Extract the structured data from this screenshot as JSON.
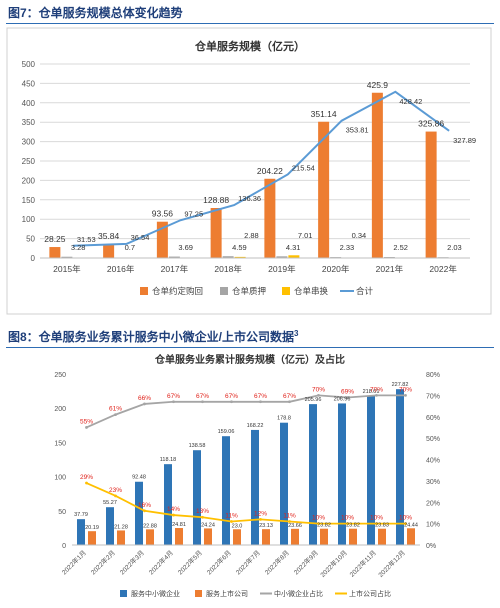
{
  "figure1": {
    "caption": "图7：仓单服务规模总体变化趋势",
    "chart_data": {
      "type": "bar",
      "title": "仓单服务规模（亿元）",
      "categories": [
        "2015年",
        "2016年",
        "2017年",
        "2018年",
        "2019年",
        "2020年",
        "2021年",
        "2022年"
      ],
      "ylim": [
        0,
        500
      ],
      "yticks": [
        "0",
        "50",
        "100",
        "150",
        "200",
        "250",
        "300",
        "350",
        "400",
        "450",
        "500"
      ],
      "grid": true,
      "legend": "bottom",
      "series": [
        {
          "name": "仓单约定购回",
          "kind": "bar",
          "color": "#ed7d31",
          "values": [
            28.25,
            35.84,
            93.56,
            128.88,
            204.22,
            351.14,
            425.9,
            325.86
          ],
          "labels": [
            "28.25",
            "35.84",
            "93.56",
            "128.88",
            "204.22",
            "351.14",
            "425.9",
            "325.86"
          ]
        },
        {
          "name": "仓单质押",
          "kind": "bar",
          "color": "#a5a5a5",
          "values": [
            3.28,
            0.7,
            3.69,
            4.59,
            4.31,
            2.33,
            2.52,
            2.03
          ],
          "labels": [
            "3.28",
            "0.7",
            "3.69",
            "4.59",
            "4.31",
            "2.33",
            "2.52",
            "2.03"
          ]
        },
        {
          "name": "仓单串换",
          "kind": "bar",
          "color": "#ffc000",
          "values": [
            0,
            0,
            0,
            2.88,
            7.01,
            0.34,
            0,
            0
          ],
          "labels": [
            "",
            "",
            "",
            "2.88",
            "7.01",
            "0.34",
            "",
            ""
          ]
        },
        {
          "name": "合计",
          "kind": "line",
          "color": "#5b9bd5",
          "values": [
            31.53,
            36.54,
            97.25,
            136.36,
            215.54,
            353.81,
            428.42,
            327.89
          ],
          "labels": [
            "31.53",
            "36.54",
            "97.25",
            "136.36",
            "215.54",
            "353.81",
            "428.42",
            "327.89"
          ]
        }
      ]
    }
  },
  "figure2": {
    "caption": "图8：仓单服务业务累计服务中小微企业/上市公司数据",
    "caption_sup": "3",
    "chart_data": {
      "type": "bar",
      "title": "仓单服务业务累计服务规模（亿元）及占比",
      "categories": [
        "2022年1月",
        "2022年2月",
        "2022年3月",
        "2022年4月",
        "2022年5月",
        "2022年6月",
        "2022年7月",
        "2022年8月",
        "2022年9月",
        "2022年10月",
        "2022年11月",
        "2022年12月"
      ],
      "ylim_left": [
        0,
        250
      ],
      "yticks_left": [
        "0",
        "50",
        "100",
        "150",
        "200",
        "250"
      ],
      "ylim_right": [
        0,
        80
      ],
      "yticks_right": [
        "0%",
        "10%",
        "20%",
        "30%",
        "40%",
        "50%",
        "60%",
        "70%",
        "80%"
      ],
      "legend": "bottom",
      "series": [
        {
          "name": "服务中小微企业",
          "kind": "bar",
          "axis": "left",
          "color": "#2e75b6",
          "values": [
            37.79,
            55.27,
            92.48,
            118.18,
            138.58,
            159.06,
            168.22,
            178.8,
            205.96,
            206.96,
            218.01,
            227.82
          ],
          "labels": [
            "37.79",
            "55.27",
            "92.48",
            "118.18",
            "138.58",
            "159.06",
            "168.22",
            "178.8",
            "205.96",
            "206.96",
            "218.01",
            "227.82"
          ]
        },
        {
          "name": "服务上市公司",
          "kind": "bar",
          "axis": "left",
          "color": "#ed7d31",
          "values": [
            20.19,
            21.28,
            22.88,
            24.81,
            24.24,
            23.0,
            23.13,
            23.66,
            23.82,
            23.82,
            23.83,
            24.44
          ],
          "labels": [
            "20.19",
            "21.28",
            "22.88",
            "24.81",
            "24.24",
            "23.0",
            "23.13",
            "23.66",
            "23.82",
            "23.82",
            "23.83",
            "24.44"
          ]
        },
        {
          "name": "中小微企业占比",
          "kind": "line",
          "axis": "right",
          "color": "#a5a5a5",
          "values": [
            55,
            61,
            66,
            67,
            67,
            67,
            67,
            67,
            70,
            69,
            70,
            70
          ],
          "labels": [
            "55%",
            "61%",
            "66%",
            "67%",
            "67%",
            "67%",
            "67%",
            "67%",
            "70%",
            "69%",
            "70%",
            "70%"
          ]
        },
        {
          "name": "上市公司占比",
          "kind": "line",
          "axis": "right",
          "color": "#ffc000",
          "values": [
            29,
            23,
            16,
            14,
            13,
            11,
            12,
            11,
            10,
            10,
            10,
            10
          ],
          "labels": [
            "29%",
            "23%",
            "16%",
            "14%",
            "13%",
            "11%",
            "12%",
            "11%",
            "10%",
            "10%",
            "10%",
            "10%"
          ]
        }
      ]
    }
  }
}
